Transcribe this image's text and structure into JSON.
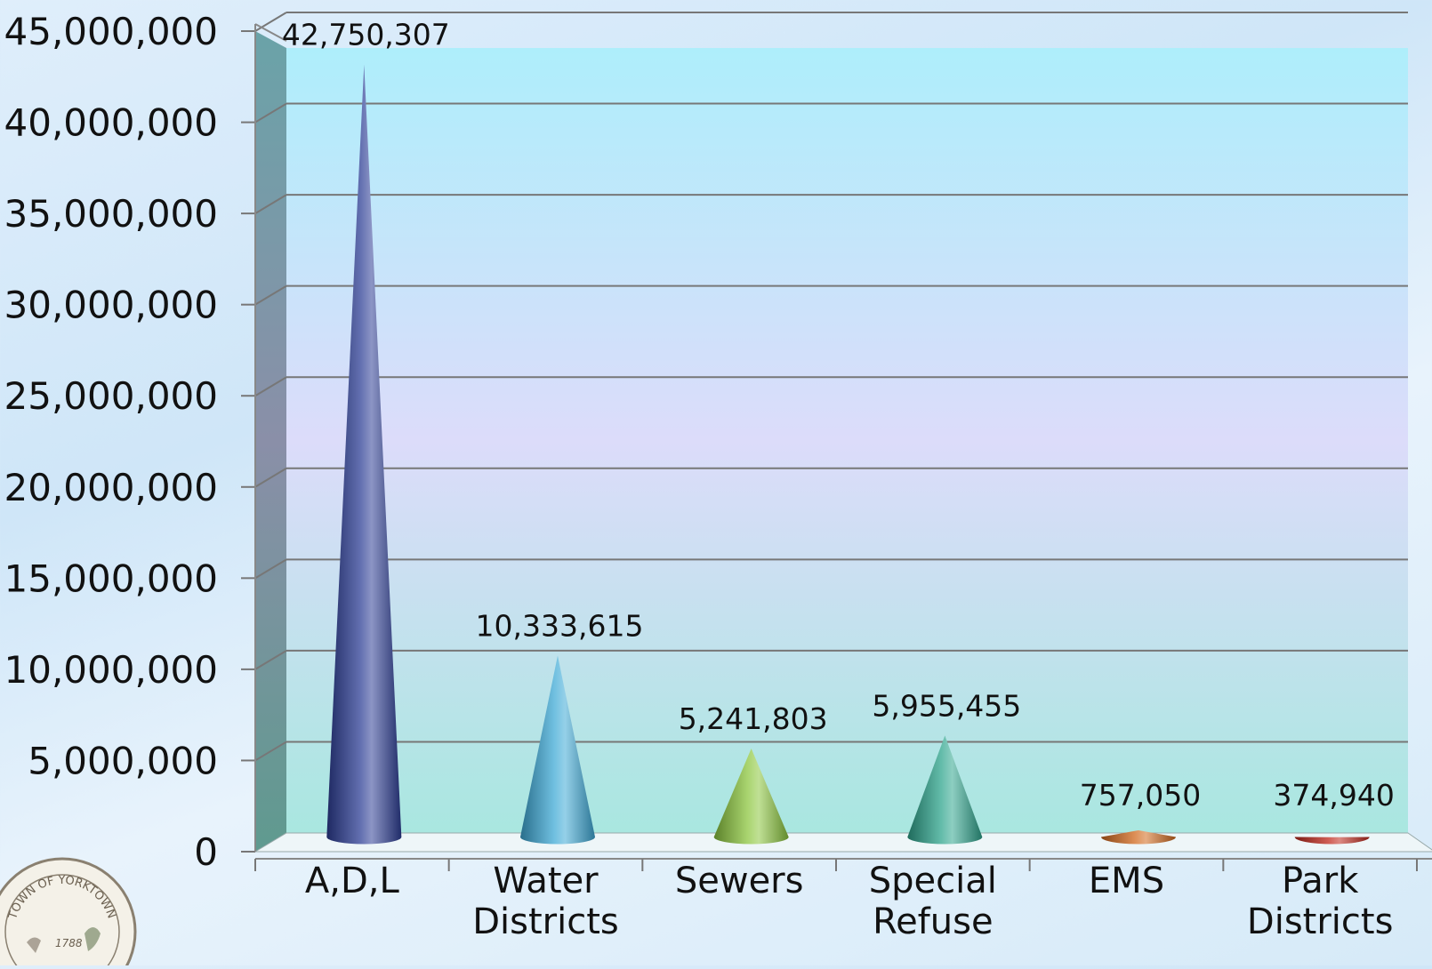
{
  "chart_data": {
    "type": "bar",
    "style": "3d-cone",
    "title": "",
    "xlabel": "",
    "ylabel": "",
    "ylim": [
      0,
      45000000
    ],
    "y_ticks": [
      0,
      5000000,
      10000000,
      15000000,
      20000000,
      25000000,
      30000000,
      35000000,
      40000000,
      45000000
    ],
    "y_tick_labels": [
      "0",
      "5,000,000",
      "10,000,000",
      "15,000,000",
      "20,000,000",
      "25,000,000",
      "30,000,000",
      "35,000,000",
      "40,000,000",
      "45,000,000"
    ],
    "grid": true,
    "categories": [
      [
        "A,D,L"
      ],
      [
        "Water",
        "Districts"
      ],
      [
        "Sewers"
      ],
      [
        "Special",
        "Refuse"
      ],
      [
        "EMS"
      ],
      [
        "Park",
        "Districts"
      ]
    ],
    "values": [
      42750307,
      10333615,
      5241803,
      5955455,
      757050,
      374940
    ],
    "data_labels": [
      "42,750,307",
      "10,333,615",
      "5,241,803",
      "5,955,455",
      "757,050",
      "374,940"
    ],
    "colors": [
      "#2e3f96",
      "#3fa9d6",
      "#8cc63f",
      "#2fa58e",
      "#d2691e",
      "#c0281c"
    ]
  },
  "seal": {
    "text": "TOWN OF YORKTOWN",
    "year": "1788"
  }
}
